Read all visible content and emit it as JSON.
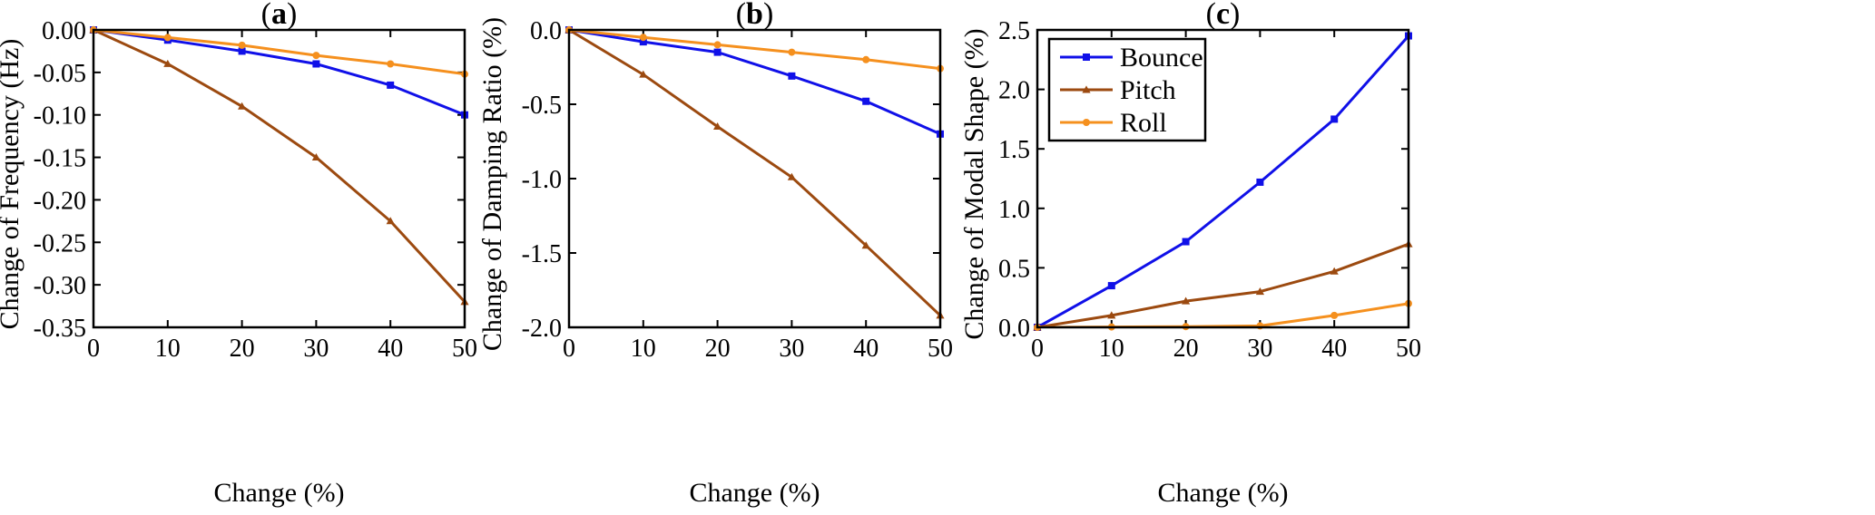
{
  "chart_data": [
    {
      "type": "line",
      "panel": "a",
      "title": "(a)",
      "xlabel": "Change (%)",
      "ylabel": "Change of  Frequency (Hz)",
      "xlim": [
        0,
        50
      ],
      "ylim": [
        -0.35,
        0
      ],
      "xticks": [
        0,
        10,
        20,
        30,
        40,
        50
      ],
      "xtick_labels": [
        "0",
        "10",
        "20",
        "30",
        "40",
        "50"
      ],
      "yticks": [
        0,
        -0.05,
        -0.1,
        -0.15,
        -0.2,
        -0.25,
        -0.3,
        -0.35
      ],
      "ytick_labels": [
        "0.00",
        "-0.05",
        "-0.10",
        "-0.15",
        "-0.20",
        "-0.25",
        "-0.30",
        "-0.35"
      ],
      "x": [
        0,
        10,
        20,
        30,
        40,
        50
      ],
      "series": [
        {
          "name": "Bounce",
          "color": "#1010e8",
          "marker": "square",
          "values": [
            0,
            -0.012,
            -0.025,
            -0.04,
            -0.065,
            -0.1
          ]
        },
        {
          "name": "Pitch",
          "color": "#9c4a10",
          "marker": "triangle",
          "values": [
            0,
            -0.04,
            -0.09,
            -0.15,
            -0.225,
            -0.32
          ]
        },
        {
          "name": "Roll",
          "color": "#f5901e",
          "marker": "circle",
          "values": [
            0,
            -0.009,
            -0.018,
            -0.03,
            -0.04,
            -0.052
          ]
        }
      ]
    },
    {
      "type": "line",
      "panel": "b",
      "title": "(b)",
      "xlabel": "Change (%)",
      "ylabel": "Change of  Damping Ratio (%)",
      "xlim": [
        0,
        50
      ],
      "ylim": [
        -2,
        0
      ],
      "xticks": [
        0,
        10,
        20,
        30,
        40,
        50
      ],
      "xtick_labels": [
        "0",
        "10",
        "20",
        "30",
        "40",
        "50"
      ],
      "yticks": [
        0,
        -0.5,
        -1,
        -1.5,
        -2
      ],
      "ytick_labels": [
        "0.0",
        "-0.5",
        "-1.0",
        "-1.5",
        "-2.0"
      ],
      "x": [
        0,
        10,
        20,
        30,
        40,
        50
      ],
      "series": [
        {
          "name": "Bounce",
          "color": "#1010e8",
          "marker": "square",
          "values": [
            0,
            -0.08,
            -0.15,
            -0.31,
            -0.48,
            -0.7
          ]
        },
        {
          "name": "Pitch",
          "color": "#9c4a10",
          "marker": "triangle",
          "values": [
            0,
            -0.3,
            -0.65,
            -0.99,
            -1.45,
            -1.92
          ]
        },
        {
          "name": "Roll",
          "color": "#f5901e",
          "marker": "circle",
          "values": [
            0,
            -0.05,
            -0.1,
            -0.15,
            -0.2,
            -0.26
          ]
        }
      ]
    },
    {
      "type": "line",
      "panel": "c",
      "title": "(c)",
      "xlabel": "Change (%)",
      "ylabel": "Change of  Modal Shape (%)",
      "xlim": [
        0,
        50
      ],
      "ylim": [
        0,
        2.5
      ],
      "xticks": [
        0,
        10,
        20,
        30,
        40,
        50
      ],
      "xtick_labels": [
        "0",
        "10",
        "20",
        "30",
        "40",
        "50"
      ],
      "yticks": [
        0,
        0.5,
        1,
        1.5,
        2,
        2.5
      ],
      "ytick_labels": [
        "0.0",
        "0.5",
        "1.0",
        "1.5",
        "2.0",
        "2.5"
      ],
      "x": [
        0,
        10,
        20,
        30,
        40,
        50
      ],
      "legend": {
        "location": "top-left",
        "entries": [
          "Bounce",
          "Pitch",
          "Roll"
        ]
      },
      "series": [
        {
          "name": "Bounce",
          "color": "#1010e8",
          "marker": "square",
          "values": [
            0,
            0.35,
            0.72,
            1.22,
            1.75,
            2.45
          ]
        },
        {
          "name": "Pitch",
          "color": "#9c4a10",
          "marker": "triangle",
          "values": [
            0,
            0.1,
            0.22,
            0.3,
            0.47,
            0.7
          ]
        },
        {
          "name": "Roll",
          "color": "#f5901e",
          "marker": "circle",
          "values": [
            0,
            0.003,
            0.006,
            0.012,
            0.1,
            0.2
          ]
        }
      ]
    }
  ]
}
